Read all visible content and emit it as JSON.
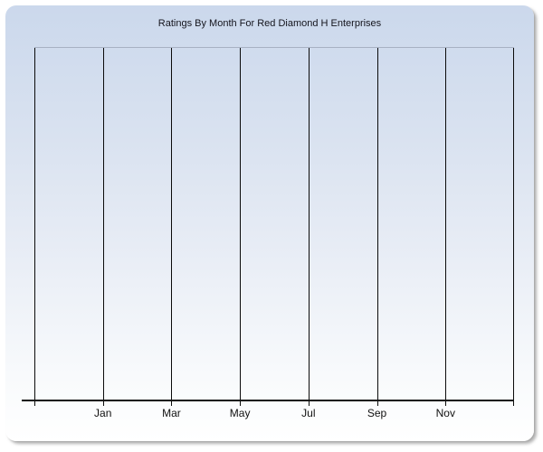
{
  "chart_data": {
    "type": "line",
    "title": "Ratings By Month For Red Diamond H Enterprises",
    "x_tick_labels": [
      "Jan",
      "Mar",
      "May",
      "Jul",
      "Sep",
      "Nov"
    ],
    "series": [],
    "plot_empty": true,
    "grid": "vertical-only",
    "legend": "none",
    "y_tick_labels": []
  },
  "colors": {
    "card_gradient_top": "#cbd8ec",
    "card_gradient_bottom": "#ffffff",
    "plot_top_border": "#a7b1c3",
    "gridline": "#0b0b0b",
    "axis_line": "#101010",
    "title_text": "#14141c",
    "tick_label_text": "#101010"
  }
}
